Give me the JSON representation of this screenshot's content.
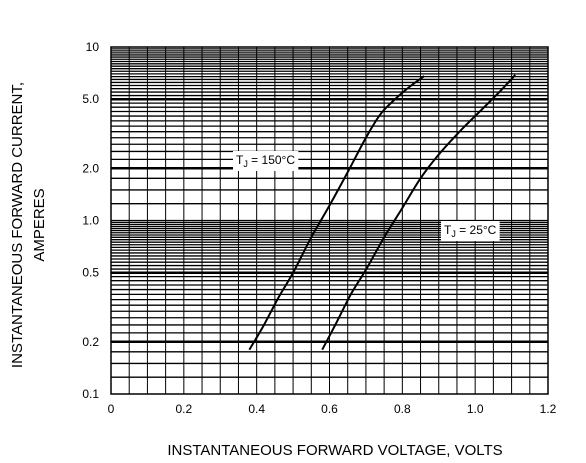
{
  "chart_data": {
    "type": "line",
    "y_scale": "log",
    "grid": true,
    "xlabel": "INSTANTANEOUS FORWARD VOLTAGE, VOLTS",
    "ylabel_line1": "INSTANTANEOUS FORWARD CURRENT,",
    "ylabel_line2": "AMPERES",
    "xlim": [
      0,
      1.2
    ],
    "ylim": [
      0.1,
      10
    ],
    "x_ticks": [
      {
        "value": 0,
        "label": "0"
      },
      {
        "value": 0.2,
        "label": "0.2"
      },
      {
        "value": 0.4,
        "label": "0.4"
      },
      {
        "value": 0.6,
        "label": "0.6"
      },
      {
        "value": 0.8,
        "label": "0.8"
      },
      {
        "value": 1.0,
        "label": "1.0"
      },
      {
        "value": 1.2,
        "label": "1.2"
      }
    ],
    "y_ticks": [
      {
        "value": 0.1,
        "label": "0.1"
      },
      {
        "value": 0.2,
        "label": "0.2"
      },
      {
        "value": 0.5,
        "label": "0.5"
      },
      {
        "value": 1.0,
        "label": "1.0"
      },
      {
        "value": 2.0,
        "label": "2.0"
      },
      {
        "value": 5.0,
        "label": "5.0"
      },
      {
        "value": 10,
        "label": "10"
      }
    ],
    "series": [
      {
        "annotation_main": "T",
        "annotation_sub": "J",
        "annotation_rest": " = 150°C",
        "x": [
          0.38,
          0.42,
          0.46,
          0.5,
          0.55,
          0.6,
          0.65,
          0.7,
          0.74,
          0.78,
          0.82,
          0.86
        ],
        "y": [
          0.18,
          0.25,
          0.36,
          0.5,
          0.8,
          1.22,
          1.9,
          3.0,
          4.1,
          5.0,
          5.9,
          6.8
        ]
      },
      {
        "annotation_main": "T",
        "annotation_sub": "J",
        "annotation_rest": " = 25°C",
        "x": [
          0.58,
          0.62,
          0.66,
          0.7,
          0.75,
          0.8,
          0.85,
          0.9,
          0.96,
          1.02,
          1.07,
          1.11
        ],
        "y": [
          0.18,
          0.26,
          0.38,
          0.52,
          0.8,
          1.18,
          1.75,
          2.4,
          3.3,
          4.4,
          5.6,
          6.9
        ]
      }
    ]
  }
}
